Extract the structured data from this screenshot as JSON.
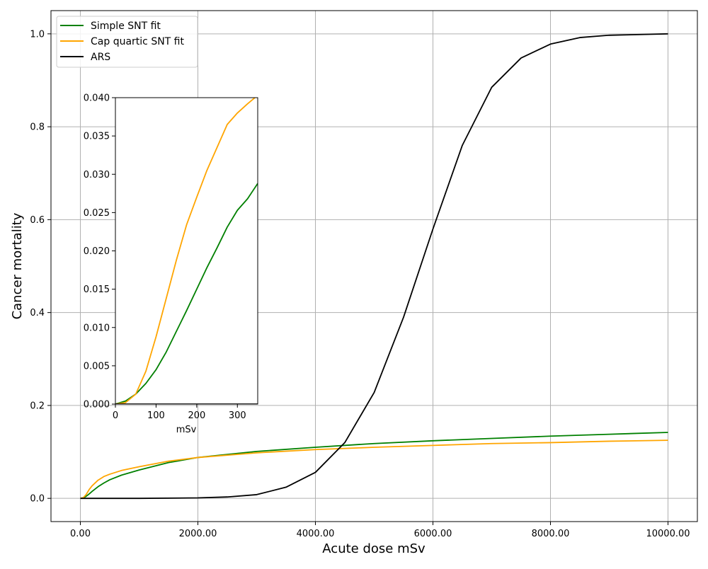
{
  "chart_data": [
    {
      "type": "line",
      "title": "",
      "xlabel": "Acute dose mSv",
      "ylabel": "Cancer mortality",
      "xlim": [
        -500,
        10500
      ],
      "ylim": [
        -0.05,
        1.05
      ],
      "x_ticks": [
        0,
        2000,
        4000,
        6000,
        8000,
        10000
      ],
      "x_tick_labels": [
        "0.00",
        "2000.00",
        "4000.00",
        "6000.00",
        "8000.00",
        "10000.00"
      ],
      "y_ticks": [
        0.0,
        0.2,
        0.4,
        0.6,
        0.8,
        1.0
      ],
      "y_tick_labels": [
        "0.0",
        "0.2",
        "0.4",
        "0.6",
        "0.8",
        "1.0"
      ],
      "grid": true,
      "legend_position": "top-left",
      "series": [
        {
          "name": "Simple SNT fit",
          "color": "#008000",
          "x": [
            0,
            50,
            100,
            150,
            200,
            300,
            400,
            500,
            700,
            1000,
            1500,
            2000,
            3000,
            4000,
            5000,
            6000,
            7000,
            8000,
            9000,
            10000
          ],
          "y": [
            0.0,
            0.0012,
            0.0045,
            0.0095,
            0.015,
            0.025,
            0.033,
            0.04,
            0.05,
            0.061,
            0.077,
            0.088,
            0.101,
            0.11,
            0.118,
            0.124,
            0.129,
            0.134,
            0.138,
            0.142
          ]
        },
        {
          "name": "Cap quartic SNT fit",
          "color": "#FFA500",
          "x": [
            0,
            50,
            100,
            150,
            200,
            300,
            400,
            500,
            700,
            1000,
            1500,
            2000,
            3000,
            4000,
            5000,
            6000,
            7000,
            8000,
            9000,
            10000
          ],
          "y": [
            0.0,
            0.0015,
            0.0085,
            0.019,
            0.027,
            0.039,
            0.047,
            0.052,
            0.06,
            0.068,
            0.08,
            0.088,
            0.098,
            0.105,
            0.11,
            0.114,
            0.118,
            0.12,
            0.123,
            0.125
          ]
        },
        {
          "name": "ARS",
          "color": "#000000",
          "x": [
            0,
            1000,
            2000,
            2500,
            3000,
            3500,
            4000,
            4500,
            5000,
            5500,
            6000,
            6500,
            7000,
            7500,
            8000,
            8500,
            9000,
            10000
          ],
          "y": [
            0.0,
            0.0,
            0.001,
            0.003,
            0.008,
            0.024,
            0.056,
            0.12,
            0.228,
            0.39,
            0.58,
            0.76,
            0.885,
            0.948,
            0.978,
            0.992,
            0.997,
            1.0
          ]
        }
      ]
    },
    {
      "type": "line",
      "title": "",
      "xlabel": "mSv",
      "ylabel": "",
      "xlim": [
        0,
        350
      ],
      "ylim": [
        0.0,
        0.04
      ],
      "x_ticks": [
        0,
        100,
        200,
        300
      ],
      "x_tick_labels": [
        "0",
        "100",
        "200",
        "300"
      ],
      "y_ticks": [
        0.0,
        0.005,
        0.01,
        0.015,
        0.02,
        0.025,
        0.03,
        0.035,
        0.04
      ],
      "y_tick_labels": [
        "0.000",
        "0.005",
        "0.010",
        "0.015",
        "0.020",
        "0.025",
        "0.030",
        "0.035",
        "0.040"
      ],
      "grid": false,
      "series": [
        {
          "color": "#008000",
          "x": [
            0,
            25,
            50,
            75,
            100,
            125,
            150,
            175,
            200,
            225,
            250,
            275,
            300,
            325,
            350
          ],
          "y": [
            0.0,
            0.0004,
            0.0013,
            0.0027,
            0.0045,
            0.0068,
            0.0095,
            0.0122,
            0.015,
            0.0178,
            0.0204,
            0.0231,
            0.0253,
            0.0268,
            0.0288
          ]
        },
        {
          "color": "#FFA500",
          "x": [
            0,
            25,
            50,
            75,
            100,
            125,
            150,
            175,
            200,
            225,
            250,
            275,
            300,
            325,
            343
          ],
          "y": [
            0.0,
            0.0002,
            0.0013,
            0.0043,
            0.0088,
            0.0138,
            0.0188,
            0.0234,
            0.027,
            0.0305,
            0.0335,
            0.0365,
            0.038,
            0.0392,
            0.04
          ]
        },
        {
          "color": "#000000",
          "x": [
            0,
            350
          ],
          "y": [
            0.0,
            0.0
          ]
        }
      ]
    }
  ]
}
